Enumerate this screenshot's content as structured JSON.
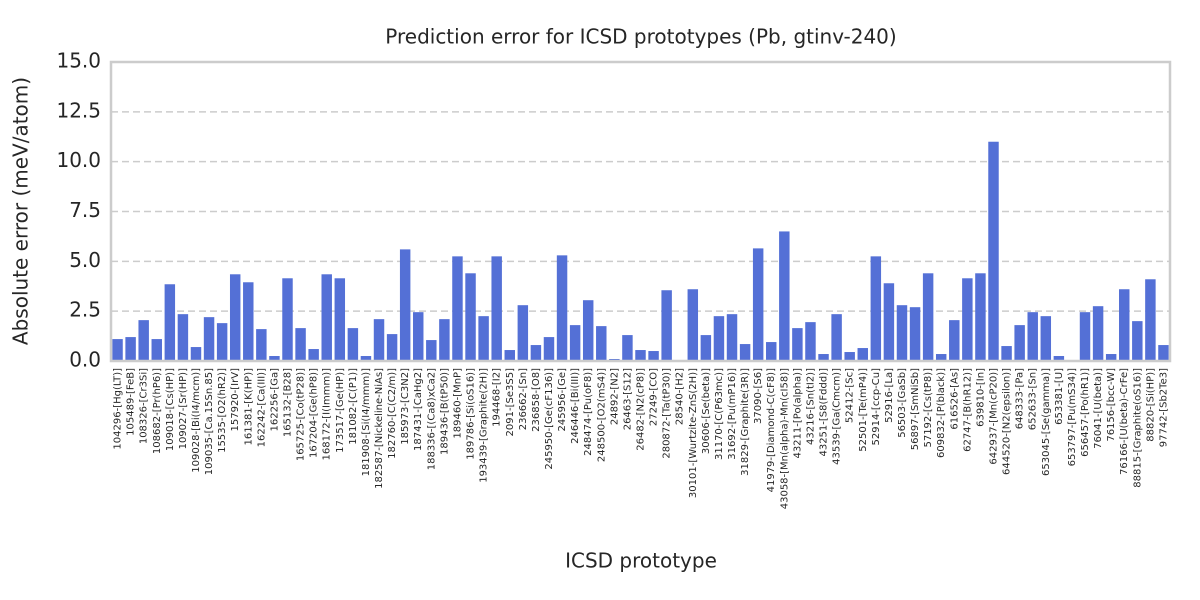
{
  "chart_data": {
    "type": "bar",
    "title": "Prediction error for ICSD prototypes (Pb, gtinv-240)",
    "xlabel": "ICSD prototype",
    "ylabel": "Absolute error (meV/atom)",
    "categories": [
      "104296-[Hg(LT)]",
      "105489-[FeB]",
      "108326-[Cr3Si]",
      "108682-[Pr(hP6)]",
      "109018-[Cs(HP)]",
      "109027-[Sr(HP)]",
      "109028-[Bi(I4/mcm)]",
      "109035-[Ca.15Sn.85]",
      "15535-[O2(hR2)]",
      "157920-[IrV]",
      "161381-[K(HP)]",
      "162242-[Ca(III)]",
      "162256-[Ga]",
      "165132-[B28]",
      "165725-[Co(tP28)]",
      "167204-[Ge(hP8)]",
      "168172-[I(Immm)]",
      "173517-[Ge(HP)]",
      "181082-[C(P1)]",
      "181908-[Si(I4/mmm)]",
      "182587-[Nickeline-NiAs]",
      "182760-[C(C2/m)]",
      "185973-[C3N2]",
      "187431-[CaHg2]",
      "188336-[(Ca8)xCa2]",
      "189436-[B(tP50)]",
      "189460-[MnP]",
      "189786-[Si(oS16)]",
      "193439-[Graphite(2H)]",
      "194468-[I2]",
      "2091-[Se3S5]",
      "236662-[Sn]",
      "236858-[O8]",
      "245950-[Ge(cF136)]",
      "245956-[Ge]",
      "246446-[Bi(III)]",
      "248474-[Pu(oF8)]",
      "248500-[O2(mS4)]",
      "24892-[N2]",
      "26463-[S12]",
      "26482-[N2(cP8)]",
      "27249-[CO]",
      "280872-[Ta(tP30)]",
      "28540-[H2]",
      "30101-[Wurtzite-ZnS(2H)]",
      "30606-[Se(beta)]",
      "31170-[C(P63mc)]",
      "31692-[Pu(mP16)]",
      "31829-[Graphite(3R)]",
      "37090-[S6]",
      "41979-[Diamond-C(cF8)]",
      "43058-[Mn(alpha)-Mn(cI58)]",
      "43211-[Po(alpha)]",
      "43216-[Sn(tI2)]",
      "43251-[S8(Fddd)]",
      "43539-[Ga(Cmcm)]",
      "52412-[Sc]",
      "52501-[Te(mP4)]",
      "52914-[ccp-Cu]",
      "52916-[La]",
      "56503-[GaSb]",
      "56897-[SmNiSb]",
      "57192-[Cs(tP8)]",
      "609832-[P(black)]",
      "616526-[As]",
      "62747-[B(hR12)]",
      "639810-[In]",
      "642937-[Mn(cP20)]",
      "644520-[N2(epsilon)]",
      "648333-[Pa]",
      "652633-[Sn]",
      "653045-[Se(gamma)]",
      "653381-[U]",
      "653797-[Pu(mS34)]",
      "656457-[Po(hR1)]",
      "76041-[U(beta)]",
      "76156-[bcc-W]",
      "76166-[U(beta)-CrFe]",
      "88815-[Graphite(oS16)]",
      "88820-[Si(HP)]",
      "97742-[Sb2Te3]"
    ],
    "values": [
      1.1,
      1.2,
      2.05,
      1.1,
      3.85,
      2.35,
      0.7,
      2.2,
      1.9,
      4.35,
      3.95,
      1.6,
      0.25,
      4.15,
      1.65,
      0.6,
      4.35,
      4.15,
      1.65,
      0.25,
      2.1,
      1.35,
      5.6,
      2.45,
      1.05,
      2.1,
      5.25,
      4.4,
      2.25,
      5.25,
      0.55,
      2.8,
      0.8,
      1.2,
      5.3,
      1.8,
      3.05,
      1.75,
      0.1,
      1.3,
      0.55,
      0.5,
      3.55,
      0.05,
      3.6,
      1.3,
      2.25,
      2.35,
      0.85,
      5.65,
      0.95,
      6.5,
      1.65,
      1.95,
      0.35,
      2.35,
      0.45,
      0.65,
      5.25,
      3.9,
      2.8,
      2.7,
      4.4,
      0.35,
      2.05,
      4.15,
      4.4,
      11.0,
      0.75,
      1.8,
      2.45,
      2.25,
      0.25,
      0,
      2.45,
      2.75,
      0.35,
      3.6,
      2.0,
      4.1,
      0.8
    ],
    "color": "#5470d6",
    "ylim": [
      0,
      15
    ],
    "yticks": [
      {
        "value": 0,
        "label": "0.0"
      },
      2.5,
      {
        "value": 5,
        "label": "5.0"
      },
      7.5,
      {
        "value": 10,
        "label": "10.0"
      },
      12.5,
      {
        "value": 15,
        "label": "15.0"
      }
    ],
    "grid": true
  }
}
